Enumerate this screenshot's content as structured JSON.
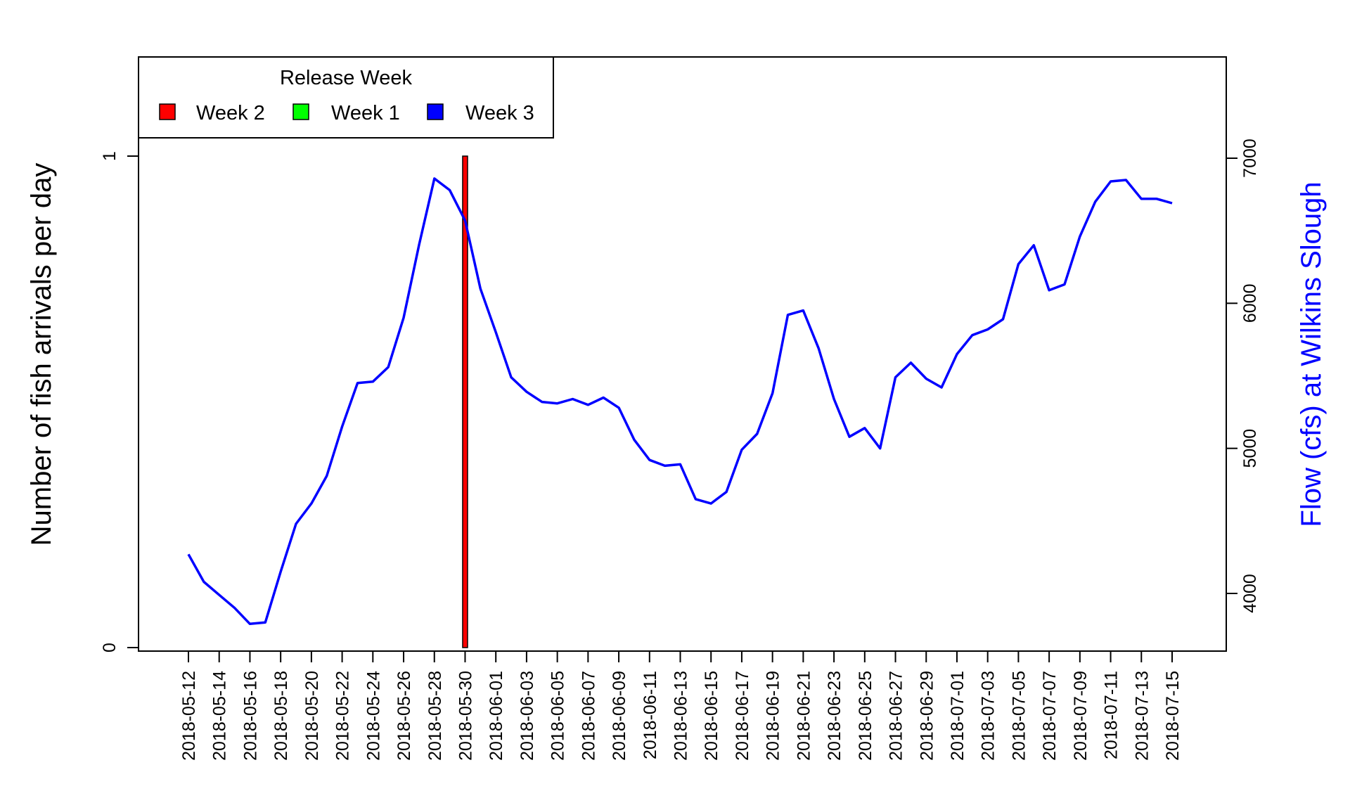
{
  "chart_data": {
    "type": "bar+line",
    "title": "",
    "x": {
      "tick_labels": [
        "2018-05-12",
        "2018-05-14",
        "2018-05-16",
        "2018-05-18",
        "2018-05-20",
        "2018-05-22",
        "2018-05-24",
        "2018-05-26",
        "2018-05-28",
        "2018-05-30",
        "2018-06-01",
        "2018-06-03",
        "2018-06-05",
        "2018-06-07",
        "2018-06-09",
        "2018-06-11",
        "2018-06-13",
        "2018-06-15",
        "2018-06-17",
        "2018-06-19",
        "2018-06-21",
        "2018-06-23",
        "2018-06-25",
        "2018-06-27",
        "2018-06-29",
        "2018-07-01",
        "2018-07-03",
        "2018-07-05",
        "2018-07-07",
        "2018-07-09",
        "2018-07-11",
        "2018-07-13",
        "2018-07-15"
      ],
      "range": [
        "2018-05-12",
        "2018-07-15"
      ],
      "label_orientation": "vertical"
    },
    "y_left": {
      "label": "Number of fish arrivals per day",
      "ticks": [
        0,
        1
      ],
      "range": [
        0,
        1
      ]
    },
    "y_right": {
      "label": "Flow (cfs) at Wilkins Slough",
      "ticks": [
        4000,
        5000,
        6000,
        7000
      ],
      "color": "#0000FF"
    },
    "legend": {
      "title": "Release Week",
      "placement": "top-left",
      "entries": [
        {
          "label": "Week 2",
          "color": "#FF0000"
        },
        {
          "label": "Week 1",
          "color": "#00FF00"
        },
        {
          "label": "Week 3",
          "color": "#0000FF"
        }
      ]
    },
    "bars": [
      {
        "date": "2018-05-30",
        "value": 1,
        "series": "Week 2",
        "color": "#FF0000"
      }
    ],
    "flow_series": {
      "color": "#0000FF",
      "points": [
        [
          "2018-05-12",
          4270
        ],
        [
          "2018-05-13",
          4080
        ],
        [
          "2018-05-14",
          3990
        ],
        [
          "2018-05-15",
          3900
        ],
        [
          "2018-05-16",
          3790
        ],
        [
          "2018-05-17",
          3800
        ],
        [
          "2018-05-18",
          4150
        ],
        [
          "2018-05-19",
          4480
        ],
        [
          "2018-05-20",
          4620
        ],
        [
          "2018-05-21",
          4810
        ],
        [
          "2018-05-22",
          5150
        ],
        [
          "2018-05-23",
          5450
        ],
        [
          "2018-05-24",
          5460
        ],
        [
          "2018-05-25",
          5560
        ],
        [
          "2018-05-26",
          5900
        ],
        [
          "2018-05-27",
          6400
        ],
        [
          "2018-05-28",
          6860
        ],
        [
          "2018-05-29",
          6780
        ],
        [
          "2018-05-30",
          6570
        ],
        [
          "2018-05-31",
          6100
        ],
        [
          "2018-06-01",
          5800
        ],
        [
          "2018-06-02",
          5490
        ],
        [
          "2018-06-03",
          5390
        ],
        [
          "2018-06-04",
          5320
        ],
        [
          "2018-06-05",
          5310
        ],
        [
          "2018-06-06",
          5340
        ],
        [
          "2018-06-07",
          5300
        ],
        [
          "2018-06-08",
          5350
        ],
        [
          "2018-06-09",
          5280
        ],
        [
          "2018-06-10",
          5060
        ],
        [
          "2018-06-11",
          4920
        ],
        [
          "2018-06-12",
          4880
        ],
        [
          "2018-06-13",
          4890
        ],
        [
          "2018-06-14",
          4650
        ],
        [
          "2018-06-15",
          4620
        ],
        [
          "2018-06-16",
          4700
        ],
        [
          "2018-06-17",
          4990
        ],
        [
          "2018-06-18",
          5100
        ],
        [
          "2018-06-19",
          5380
        ],
        [
          "2018-06-20",
          5920
        ],
        [
          "2018-06-21",
          5950
        ],
        [
          "2018-06-22",
          5690
        ],
        [
          "2018-06-23",
          5340
        ],
        [
          "2018-06-24",
          5080
        ],
        [
          "2018-06-25",
          5140
        ],
        [
          "2018-06-26",
          5000
        ],
        [
          "2018-06-27",
          5490
        ],
        [
          "2018-06-28",
          5590
        ],
        [
          "2018-06-29",
          5480
        ],
        [
          "2018-06-30",
          5420
        ],
        [
          "2018-07-01",
          5650
        ],
        [
          "2018-07-02",
          5780
        ],
        [
          "2018-07-03",
          5820
        ],
        [
          "2018-07-04",
          5890
        ],
        [
          "2018-07-05",
          6270
        ],
        [
          "2018-07-06",
          6400
        ],
        [
          "2018-07-07",
          6090
        ],
        [
          "2018-07-08",
          6130
        ],
        [
          "2018-07-09",
          6460
        ],
        [
          "2018-07-10",
          6700
        ],
        [
          "2018-07-11",
          6840
        ],
        [
          "2018-07-12",
          6850
        ],
        [
          "2018-07-13",
          6720
        ],
        [
          "2018-07-14",
          6720
        ],
        [
          "2018-07-15",
          6690
        ]
      ]
    }
  }
}
